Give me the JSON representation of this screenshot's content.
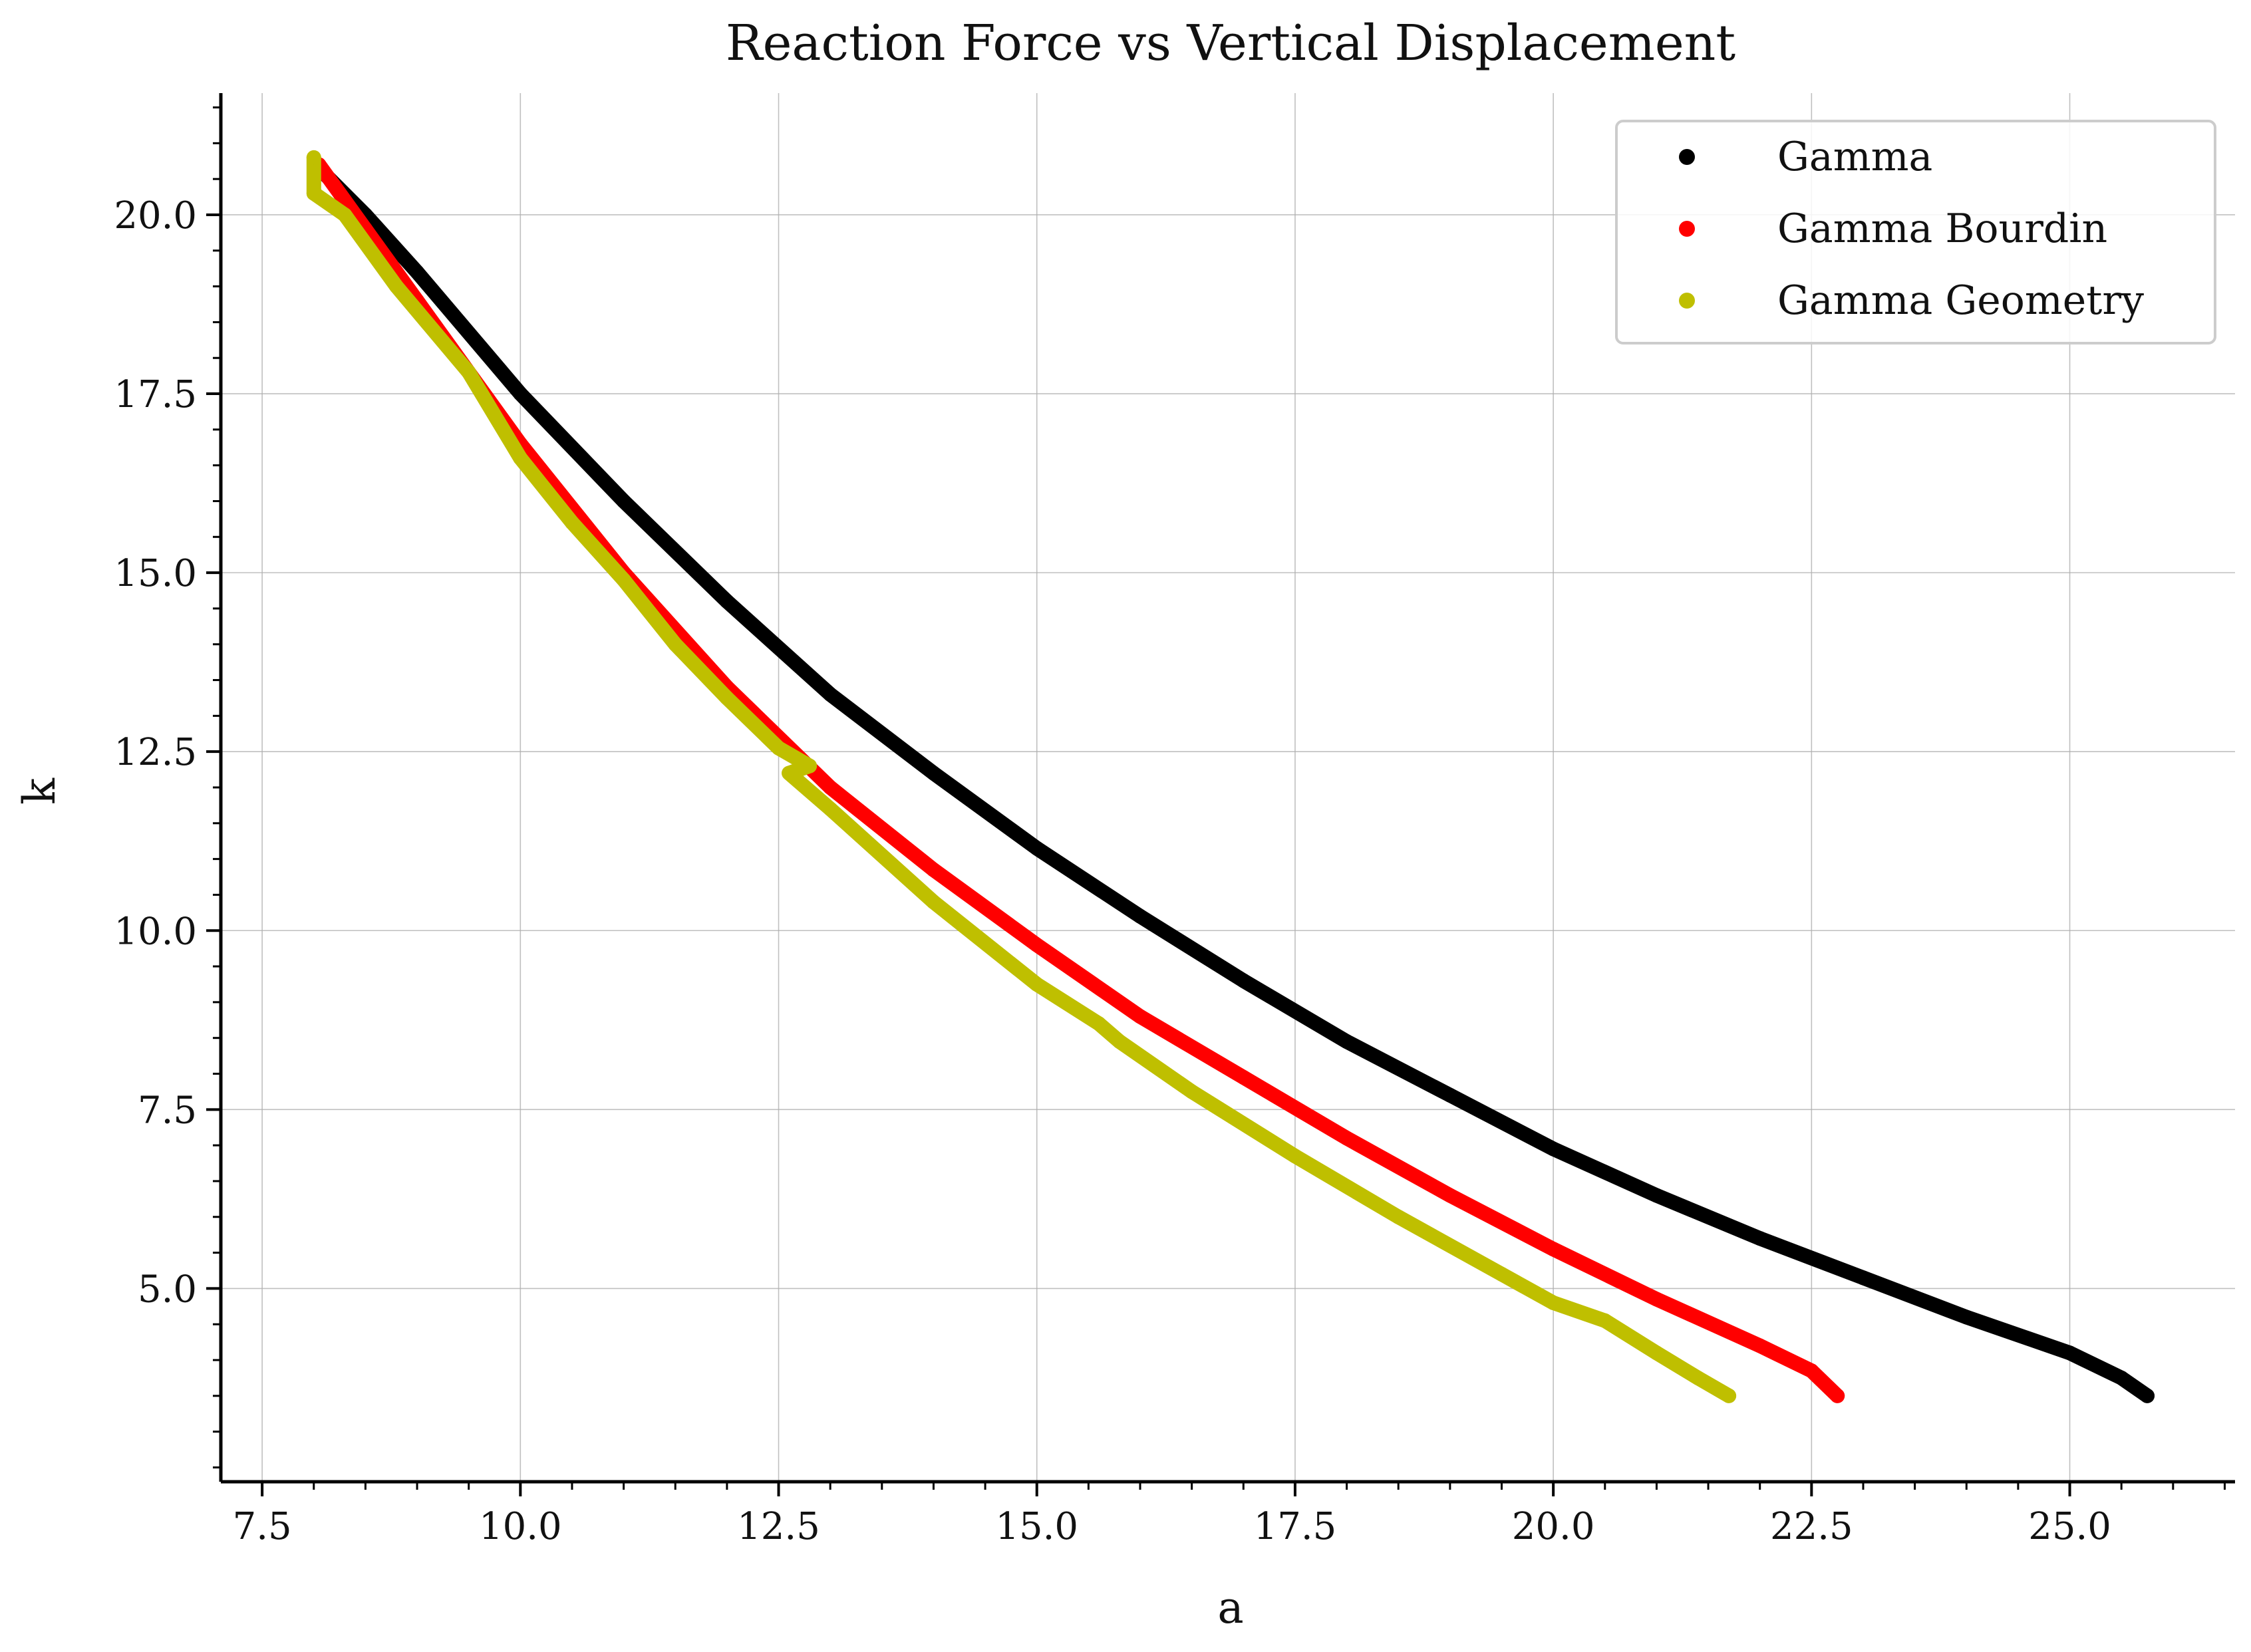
{
  "chart_data": {
    "type": "scatter",
    "title": "Reaction Force vs Vertical Displacement",
    "xlabel": "a",
    "ylabel": "k",
    "xlim": [
      7.1,
      26.6
    ],
    "ylim": [
      2.3,
      21.7
    ],
    "xticks": [
      "7.5",
      "10.0",
      "12.5",
      "15.0",
      "17.5",
      "20.0",
      "22.5",
      "25.0"
    ],
    "yticks": [
      "5.0",
      "7.5",
      "10.0",
      "12.5",
      "15.0",
      "17.5",
      "20.0"
    ],
    "grid": true,
    "legend_position": "top-right",
    "series": [
      {
        "name": "Gamma",
        "color": "#000000",
        "points": [
          [
            8.05,
            20.65
          ],
          [
            8.5,
            20.0
          ],
          [
            9.0,
            19.2
          ],
          [
            10.0,
            17.5
          ],
          [
            11.0,
            16.0
          ],
          [
            12.0,
            14.6
          ],
          [
            13.0,
            13.3
          ],
          [
            14.0,
            12.2
          ],
          [
            15.0,
            11.15
          ],
          [
            16.0,
            10.2
          ],
          [
            17.0,
            9.3
          ],
          [
            18.0,
            8.45
          ],
          [
            19.0,
            7.7
          ],
          [
            20.0,
            6.95
          ],
          [
            21.0,
            6.3
          ],
          [
            22.0,
            5.7
          ],
          [
            23.0,
            5.15
          ],
          [
            24.0,
            4.6
          ],
          [
            25.0,
            4.1
          ],
          [
            25.5,
            3.75
          ],
          [
            25.75,
            3.5
          ]
        ]
      },
      {
        "name": "Gamma Bourdin",
        "color": "#ff0000",
        "points": [
          [
            8.05,
            20.7
          ],
          [
            8.5,
            19.8
          ],
          [
            9.0,
            18.8
          ],
          [
            10.0,
            16.8
          ],
          [
            11.0,
            15.0
          ],
          [
            12.0,
            13.4
          ],
          [
            13.0,
            12.0
          ],
          [
            14.0,
            10.85
          ],
          [
            15.0,
            9.8
          ],
          [
            16.0,
            8.8
          ],
          [
            17.0,
            7.95
          ],
          [
            18.0,
            7.1
          ],
          [
            19.0,
            6.3
          ],
          [
            20.0,
            5.55
          ],
          [
            21.0,
            4.85
          ],
          [
            22.0,
            4.2
          ],
          [
            22.5,
            3.85
          ],
          [
            22.75,
            3.5
          ]
        ]
      },
      {
        "name": "Gamma Geometry",
        "color": "#bfbf00",
        "points": [
          [
            8.0,
            20.8
          ],
          [
            8.0,
            20.3
          ],
          [
            8.3,
            20.0
          ],
          [
            8.8,
            19.0
          ],
          [
            9.5,
            17.8
          ],
          [
            10.0,
            16.6
          ],
          [
            10.5,
            15.7
          ],
          [
            11.0,
            14.9
          ],
          [
            11.5,
            14.0
          ],
          [
            12.0,
            13.25
          ],
          [
            12.5,
            12.55
          ],
          [
            12.8,
            12.3
          ],
          [
            12.6,
            12.2
          ],
          [
            13.0,
            11.7
          ],
          [
            14.0,
            10.4
          ],
          [
            15.0,
            9.25
          ],
          [
            15.6,
            8.7
          ],
          [
            15.8,
            8.45
          ],
          [
            16.5,
            7.75
          ],
          [
            17.5,
            6.85
          ],
          [
            18.5,
            6.0
          ],
          [
            19.5,
            5.2
          ],
          [
            20.0,
            4.8
          ],
          [
            20.5,
            4.55
          ],
          [
            21.0,
            4.1
          ],
          [
            21.4,
            3.75
          ],
          [
            21.7,
            3.5
          ]
        ]
      }
    ]
  }
}
